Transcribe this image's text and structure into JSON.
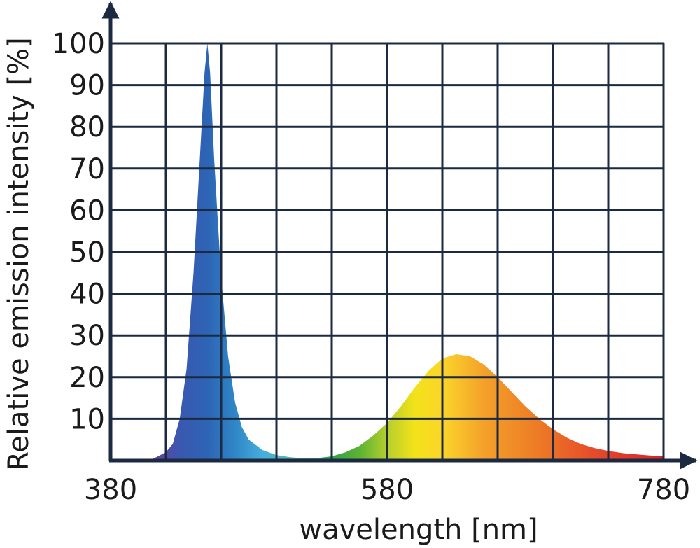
{
  "chart_data": {
    "type": "area",
    "title": "",
    "xlabel": "wavelength [nm]",
    "ylabel": "Relative emission intensity [%]",
    "xlim": [
      380,
      780
    ],
    "ylim": [
      0,
      100
    ],
    "x_tick_labels": [
      "380",
      "580",
      "780"
    ],
    "y_tick_labels": [
      "10",
      "20",
      "30",
      "40",
      "50",
      "60",
      "70",
      "80",
      "90",
      "100"
    ],
    "grid": true,
    "axis_color": "#1b2a40",
    "series": [
      {
        "x": [
          380,
          400,
          410,
          420,
          425,
          430,
          435,
          440,
          445,
          448,
          450,
          452,
          455,
          460,
          465,
          470,
          475,
          480,
          490,
          500,
          510,
          520,
          530,
          540,
          550,
          560,
          570,
          580,
          590,
          600,
          610,
          620,
          630,
          640,
          650,
          660,
          670,
          680,
          690,
          700,
          710,
          720,
          730,
          740,
          750,
          760,
          770,
          780
        ],
        "y": [
          0,
          0,
          0.3,
          2,
          4,
          10,
          22,
          45,
          75,
          93,
          100,
          93,
          72,
          44,
          25,
          14,
          8,
          5,
          2.5,
          1.3,
          0.8,
          0.5,
          0.6,
          1,
          2,
          3.5,
          6,
          9,
          13,
          17.5,
          21.5,
          24.5,
          25.5,
          25,
          23,
          20,
          16.5,
          13,
          10,
          7.5,
          5.5,
          4,
          3,
          2.3,
          1.8,
          1.5,
          1.2,
          1
        ]
      }
    ],
    "fill_gradient": [
      {
        "nm": 380,
        "color": "#8a3c8f"
      },
      {
        "nm": 410,
        "color": "#6b3fa0"
      },
      {
        "nm": 430,
        "color": "#3a58b0"
      },
      {
        "nm": 450,
        "color": "#2d64b5"
      },
      {
        "nm": 470,
        "color": "#2f86c6"
      },
      {
        "nm": 490,
        "color": "#47aede"
      },
      {
        "nm": 510,
        "color": "#55b9b0"
      },
      {
        "nm": 540,
        "color": "#2fa24a"
      },
      {
        "nm": 560,
        "color": "#5cb233"
      },
      {
        "nm": 580,
        "color": "#b5cf2c"
      },
      {
        "nm": 600,
        "color": "#f3e21a"
      },
      {
        "nm": 620,
        "color": "#fbd52a"
      },
      {
        "nm": 650,
        "color": "#f4a12a"
      },
      {
        "nm": 690,
        "color": "#ed7a25"
      },
      {
        "nm": 730,
        "color": "#e64a2a"
      },
      {
        "nm": 780,
        "color": "#d8232a"
      }
    ]
  }
}
